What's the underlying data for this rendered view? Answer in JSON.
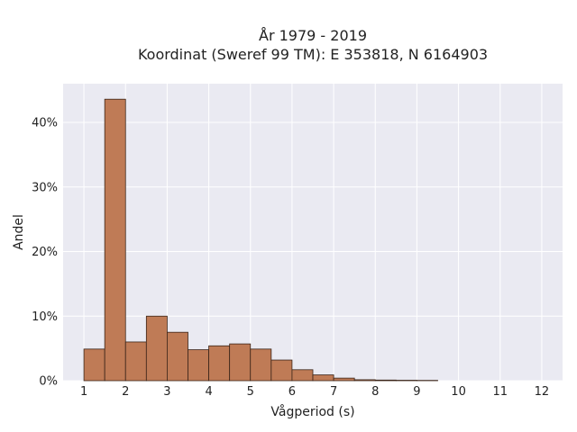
{
  "chart_data": {
    "type": "bar",
    "title": "År 1979 - 2019",
    "subtitle": "Koordinat (Sweref 99 TM): E 353818, N 6164903",
    "xlabel": "Vågperiod (s)",
    "ylabel": "Andel",
    "x_ticks": [
      "1",
      "2",
      "3",
      "4",
      "5",
      "6",
      "7",
      "8",
      "9",
      "10",
      "11",
      "12"
    ],
    "y_ticks": [
      "0%",
      "10%",
      "20%",
      "30%",
      "40%"
    ],
    "xlim": [
      0.5,
      12.5
    ],
    "ylim": [
      0,
      46
    ],
    "bin_width": 0.5,
    "bins": [
      {
        "start": 1.0,
        "value": 4.9
      },
      {
        "start": 1.5,
        "value": 43.6
      },
      {
        "start": 2.0,
        "value": 6.0
      },
      {
        "start": 2.5,
        "value": 10.0
      },
      {
        "start": 3.0,
        "value": 7.5
      },
      {
        "start": 3.5,
        "value": 4.8
      },
      {
        "start": 4.0,
        "value": 5.4
      },
      {
        "start": 4.5,
        "value": 5.7
      },
      {
        "start": 5.0,
        "value": 4.9
      },
      {
        "start": 5.5,
        "value": 3.2
      },
      {
        "start": 6.0,
        "value": 1.7
      },
      {
        "start": 6.5,
        "value": 0.9
      },
      {
        "start": 7.0,
        "value": 0.4
      },
      {
        "start": 7.5,
        "value": 0.15
      },
      {
        "start": 8.0,
        "value": 0.1
      },
      {
        "start": 8.5,
        "value": 0.07
      },
      {
        "start": 9.0,
        "value": 0.05
      }
    ],
    "grid": true,
    "colors": {
      "bar_fill": "#bf7b56",
      "bar_stroke": "#3a2418",
      "plot_bg": "#eaeaf2",
      "grid": "#ffffff"
    }
  }
}
